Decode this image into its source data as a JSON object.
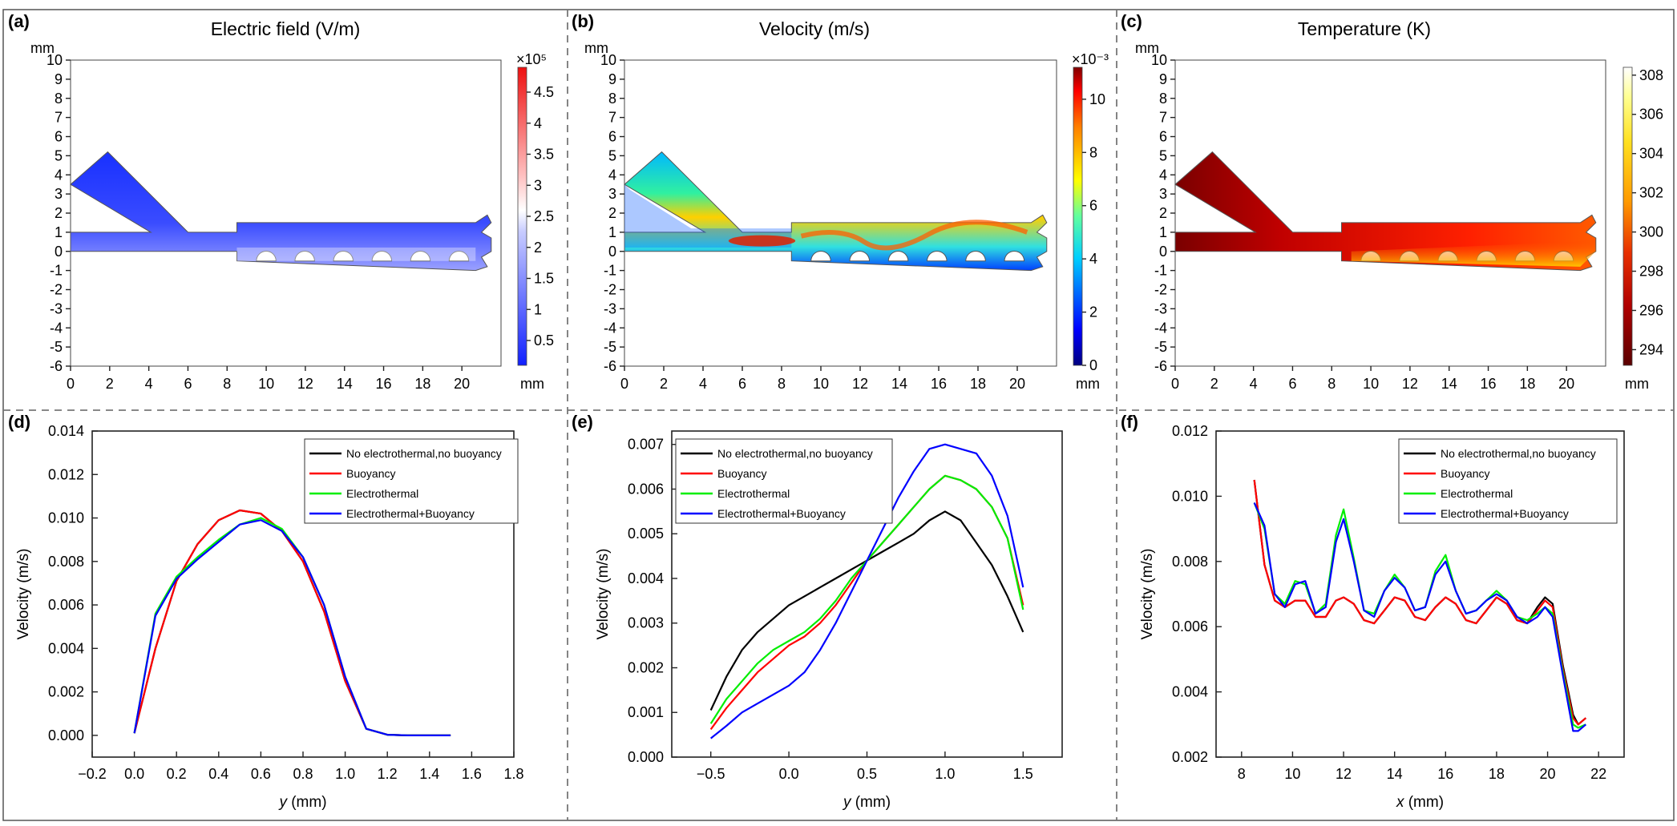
{
  "colors": {
    "no_et_no_b": "#000000",
    "buoyancy": "#ff0000",
    "electrothermal": "#00ee00",
    "et_buoyancy": "#0000ff",
    "channel_blue": "#0010ff"
  },
  "maps": [
    {
      "label": "(a)",
      "title": "Electric field (V/m)",
      "xticks": [
        "0",
        "2",
        "4",
        "6",
        "8",
        "10",
        "12",
        "14",
        "16",
        "18",
        "20"
      ],
      "yticks": [
        "10",
        "9",
        "8",
        "7",
        "6",
        "5",
        "4",
        "3",
        "2",
        "1",
        "0",
        "-1",
        "-2",
        "-3",
        "-4",
        "-5",
        "-6"
      ],
      "unit_x": "mm",
      "unit_y": "mm",
      "colorbar": {
        "exponent": "×10⁵",
        "ticks": [
          "4.5",
          "4",
          "3.5",
          "3",
          "2.5",
          "2",
          "1.5",
          "1",
          "0.5"
        ],
        "range": [
          0.1,
          4.9
        ],
        "values": [
          4.5,
          4,
          3.5,
          3,
          2.5,
          2,
          1.5,
          1,
          0.5
        ]
      }
    },
    {
      "label": "(b)",
      "title": "Velocity (m/s)",
      "xticks": [
        "0",
        "2",
        "4",
        "6",
        "8",
        "10",
        "12",
        "14",
        "16",
        "18",
        "20"
      ],
      "yticks": [
        "10",
        "9",
        "8",
        "7",
        "6",
        "5",
        "4",
        "3",
        "2",
        "1",
        "0",
        "-1",
        "-2",
        "-3",
        "-4",
        "-5",
        "-6"
      ],
      "unit_x": "mm",
      "unit_y": "mm",
      "colorbar": {
        "exponent": "×10⁻³",
        "ticks": [
          "10",
          "8",
          "6",
          "4",
          "2",
          "0"
        ],
        "range": [
          0,
          11.2
        ],
        "values": [
          10,
          8,
          6,
          4,
          2,
          0
        ]
      }
    },
    {
      "label": "(c)",
      "title": "Temperature (K)",
      "xticks": [
        "0",
        "2",
        "4",
        "6",
        "8",
        "10",
        "12",
        "14",
        "16",
        "18",
        "20"
      ],
      "yticks": [
        "10",
        "9",
        "8",
        "7",
        "6",
        "5",
        "4",
        "3",
        "2",
        "1",
        "0",
        "-1",
        "-2",
        "-3",
        "-4",
        "-5",
        "-6"
      ],
      "unit_x": "mm",
      "unit_y": "mm",
      "colorbar": {
        "exponent": "",
        "ticks": [
          "308",
          "306",
          "304",
          "302",
          "300",
          "298",
          "296",
          "294"
        ],
        "range": [
          293.2,
          308.4
        ],
        "values": [
          308,
          306,
          304,
          302,
          300,
          298,
          296,
          294
        ]
      }
    }
  ],
  "chart_data": [
    {
      "type": "line",
      "panel": "(d)",
      "xlabel_var": "y",
      "xlabel_unit": " (mm)",
      "ylabel": "Velocity (m/s)",
      "xlim": [
        -0.2,
        1.8
      ],
      "ylim": [
        -0.001,
        0.014
      ],
      "xticks": [
        -0.2,
        0,
        0.2,
        0.4,
        0.6,
        0.8,
        1.0,
        1.2,
        1.4,
        1.6,
        1.8
      ],
      "xtick_labels": [
        "−0.2",
        "0.0",
        "0.2",
        "0.4",
        "0.6",
        "0.8",
        "1.0",
        "1.2",
        "1.4",
        "1.6",
        "1.8"
      ],
      "yticks": [
        0,
        0.002,
        0.004,
        0.006,
        0.008,
        0.01,
        0.012,
        0.014
      ],
      "ytick_labels": [
        "0.000",
        "0.002",
        "0.004",
        "0.006",
        "0.008",
        "0.010",
        "0.012",
        "0.014"
      ],
      "legend_position": "top-right",
      "series": [
        {
          "name": "No electrothermal,no buoyancy",
          "color": "#000000",
          "x": [
            0,
            0.1,
            0.2,
            0.3,
            0.4,
            0.5,
            0.6,
            0.7,
            0.8,
            0.9,
            1.0,
            1.1,
            1.2,
            1.3,
            1.4,
            1.5
          ],
          "y": [
            0.0001,
            0.004,
            0.0071,
            0.0088,
            0.0099,
            0.01035,
            0.0102,
            0.0094,
            0.008,
            0.0057,
            0.0025,
            0.0003,
            3e-05,
            0,
            0,
            0
          ]
        },
        {
          "name": "Buoyancy",
          "color": "#ff0000",
          "x": [
            0,
            0.1,
            0.2,
            0.3,
            0.4,
            0.5,
            0.6,
            0.7,
            0.8,
            0.9,
            1.0,
            1.1,
            1.2,
            1.3,
            1.4,
            1.5
          ],
          "y": [
            0.0001,
            0.004,
            0.0071,
            0.0088,
            0.0099,
            0.01035,
            0.0102,
            0.0094,
            0.008,
            0.0057,
            0.0025,
            0.0003,
            3e-05,
            0,
            0,
            0
          ]
        },
        {
          "name": "Electrothermal",
          "color": "#00ee00",
          "x": [
            0,
            0.1,
            0.2,
            0.3,
            0.4,
            0.5,
            0.6,
            0.7,
            0.8,
            0.9,
            1.0,
            1.1,
            1.2,
            1.3,
            1.4,
            1.5
          ],
          "y": [
            0.0001,
            0.0056,
            0.0073,
            0.0082,
            0.009,
            0.0097,
            0.01,
            0.0095,
            0.0082,
            0.006,
            0.0027,
            0.0003,
            3e-05,
            0,
            0,
            0
          ]
        },
        {
          "name": "Electrothermal+Buoyancy",
          "color": "#0000ff",
          "x": [
            0,
            0.1,
            0.2,
            0.3,
            0.4,
            0.5,
            0.6,
            0.7,
            0.8,
            0.9,
            1.0,
            1.1,
            1.2,
            1.3,
            1.4,
            1.5
          ],
          "y": [
            0.0001,
            0.0055,
            0.0072,
            0.0081,
            0.0089,
            0.0097,
            0.0099,
            0.0094,
            0.0082,
            0.006,
            0.0027,
            0.0003,
            3e-05,
            0,
            0,
            0
          ]
        }
      ]
    },
    {
      "type": "line",
      "panel": "(e)",
      "xlabel_var": "y",
      "xlabel_unit": " (mm)",
      "ylabel": "Velocity (m/s)",
      "xlim": [
        -0.75,
        1.75
      ],
      "ylim": [
        0,
        0.0073
      ],
      "xticks": [
        -0.5,
        0,
        0.5,
        1.0,
        1.5
      ],
      "xtick_labels": [
        "−0.5",
        "0.0",
        "0.5",
        "1.0",
        "1.5"
      ],
      "yticks": [
        0,
        0.001,
        0.002,
        0.003,
        0.004,
        0.005,
        0.006,
        0.007
      ],
      "ytick_labels": [
        "0.000",
        "0.001",
        "0.002",
        "0.003",
        "0.004",
        "0.005",
        "0.006",
        "0.007"
      ],
      "legend_position": "top-left",
      "series": [
        {
          "name": "No electrothermal,no buoyancy",
          "color": "#000000",
          "x": [
            -0.5,
            -0.4,
            -0.3,
            -0.2,
            -0.1,
            0,
            0.1,
            0.2,
            0.3,
            0.4,
            0.5,
            0.6,
            0.7,
            0.8,
            0.9,
            1.0,
            1.1,
            1.2,
            1.3,
            1.4,
            1.5
          ],
          "y": [
            0.00105,
            0.0018,
            0.0024,
            0.0028,
            0.0031,
            0.0034,
            0.0036,
            0.0038,
            0.004,
            0.0042,
            0.0044,
            0.0046,
            0.0048,
            0.005,
            0.0053,
            0.0055,
            0.0053,
            0.0048,
            0.0043,
            0.0036,
            0.0028
          ]
        },
        {
          "name": "Buoyancy",
          "color": "#ff0000",
          "x": [
            -0.5,
            -0.4,
            -0.3,
            -0.2,
            -0.1,
            0,
            0.1,
            0.2,
            0.3,
            0.4,
            0.5,
            0.6,
            0.7,
            0.8,
            0.9,
            1.0,
            1.1,
            1.2,
            1.3,
            1.4,
            1.5
          ],
          "y": [
            0.00062,
            0.0011,
            0.0015,
            0.0019,
            0.0022,
            0.0025,
            0.0027,
            0.003,
            0.0034,
            0.0039,
            0.0044,
            0.0048,
            0.0052,
            0.0056,
            0.006,
            0.0063,
            0.0062,
            0.006,
            0.0056,
            0.0049,
            0.0034
          ]
        },
        {
          "name": "Electrothermal",
          "color": "#00ee00",
          "x": [
            -0.5,
            -0.4,
            -0.3,
            -0.2,
            -0.1,
            0,
            0.1,
            0.2,
            0.3,
            0.4,
            0.5,
            0.6,
            0.7,
            0.8,
            0.9,
            1.0,
            1.1,
            1.2,
            1.3,
            1.4,
            1.5
          ],
          "y": [
            0.00075,
            0.0013,
            0.0017,
            0.0021,
            0.0024,
            0.0026,
            0.0028,
            0.0031,
            0.0035,
            0.004,
            0.0044,
            0.0048,
            0.0052,
            0.0056,
            0.006,
            0.0063,
            0.0062,
            0.006,
            0.0056,
            0.0049,
            0.0033
          ]
        },
        {
          "name": "Electrothermal+Buoyancy",
          "color": "#0000ff",
          "x": [
            -0.5,
            -0.4,
            -0.3,
            -0.2,
            -0.1,
            0,
            0.1,
            0.2,
            0.3,
            0.4,
            0.5,
            0.6,
            0.7,
            0.8,
            0.9,
            1.0,
            1.1,
            1.2,
            1.3,
            1.4,
            1.5
          ],
          "y": [
            0.00042,
            0.0007,
            0.001,
            0.0012,
            0.0014,
            0.0016,
            0.0019,
            0.0024,
            0.003,
            0.0037,
            0.0044,
            0.0051,
            0.0058,
            0.0064,
            0.0069,
            0.007,
            0.0069,
            0.0068,
            0.0063,
            0.0054,
            0.0038
          ]
        }
      ]
    },
    {
      "type": "line",
      "panel": "(f)",
      "xlabel_var": "x",
      "xlabel_unit": " (mm)",
      "ylabel": "Velocity (m/s)",
      "xlim": [
        7,
        23
      ],
      "ylim": [
        0.002,
        0.012
      ],
      "xticks": [
        8,
        10,
        12,
        14,
        16,
        18,
        20,
        22
      ],
      "xtick_labels": [
        "8",
        "10",
        "12",
        "14",
        "16",
        "18",
        "20",
        "22"
      ],
      "yticks": [
        0.002,
        0.004,
        0.006,
        0.008,
        0.01,
        0.012
      ],
      "ytick_labels": [
        "0.002",
        "0.004",
        "0.006",
        "0.008",
        "0.010",
        "0.012"
      ],
      "legend_position": "top-right",
      "series": [
        {
          "name": "No electrothermal,no buoyancy",
          "color": "#000000",
          "x": [
            8.5,
            8.9,
            9.3,
            9.7,
            10.1,
            10.5,
            10.9,
            11.3,
            11.7,
            12.0,
            12.4,
            12.8,
            13.2,
            13.6,
            14.0,
            14.4,
            14.8,
            15.2,
            15.6,
            16.0,
            16.4,
            16.8,
            17.2,
            17.6,
            18.0,
            18.4,
            18.8,
            19.2,
            19.6,
            19.9,
            20.2,
            20.6,
            21.0,
            21.2,
            21.5
          ],
          "y": [
            0.0105,
            0.0079,
            0.0068,
            0.0066,
            0.0068,
            0.0068,
            0.0063,
            0.0063,
            0.0068,
            0.0069,
            0.0067,
            0.0062,
            0.0061,
            0.0065,
            0.0069,
            0.0068,
            0.0063,
            0.0062,
            0.0066,
            0.0069,
            0.0067,
            0.0062,
            0.0061,
            0.0065,
            0.0069,
            0.0067,
            0.0062,
            0.0061,
            0.0066,
            0.0069,
            0.0067,
            0.0048,
            0.0033,
            0.003,
            0.0032
          ]
        },
        {
          "name": "Buoyancy",
          "color": "#ff0000",
          "x": [
            8.5,
            8.9,
            9.3,
            9.7,
            10.1,
            10.5,
            10.9,
            11.3,
            11.7,
            12.0,
            12.4,
            12.8,
            13.2,
            13.6,
            14.0,
            14.4,
            14.8,
            15.2,
            15.6,
            16.0,
            16.4,
            16.8,
            17.2,
            17.6,
            18.0,
            18.4,
            18.8,
            19.2,
            19.6,
            19.9,
            20.2,
            20.6,
            21.0,
            21.2,
            21.5
          ],
          "y": [
            0.0105,
            0.0079,
            0.0068,
            0.0066,
            0.0068,
            0.0068,
            0.0063,
            0.0063,
            0.0068,
            0.0069,
            0.0067,
            0.0062,
            0.0061,
            0.0065,
            0.0069,
            0.0068,
            0.0063,
            0.0062,
            0.0066,
            0.0069,
            0.0067,
            0.0062,
            0.0061,
            0.0065,
            0.0069,
            0.0067,
            0.0062,
            0.0061,
            0.0065,
            0.0068,
            0.0066,
            0.0047,
            0.0032,
            0.003,
            0.0032
          ]
        },
        {
          "name": "Electrothermal",
          "color": "#00ee00",
          "x": [
            8.5,
            8.9,
            9.3,
            9.7,
            10.1,
            10.5,
            10.9,
            11.3,
            11.7,
            12.0,
            12.4,
            12.8,
            13.2,
            13.6,
            14.0,
            14.4,
            14.8,
            15.2,
            15.6,
            16.0,
            16.4,
            16.8,
            17.2,
            17.6,
            18.0,
            18.4,
            18.8,
            19.2,
            19.6,
            19.9,
            20.2,
            20.6,
            21.0,
            21.2,
            21.5
          ],
          "y": [
            0.0098,
            0.009,
            0.007,
            0.0067,
            0.0074,
            0.0073,
            0.0064,
            0.0067,
            0.0088,
            0.0096,
            0.0081,
            0.0065,
            0.0064,
            0.0071,
            0.0076,
            0.0072,
            0.0065,
            0.0066,
            0.0077,
            0.0082,
            0.0071,
            0.0064,
            0.0065,
            0.0068,
            0.0071,
            0.0068,
            0.0063,
            0.0062,
            0.0064,
            0.0066,
            0.0064,
            0.0046,
            0.003,
            0.0029,
            0.003
          ]
        },
        {
          "name": "Electrothermal+Buoyancy",
          "color": "#0000ff",
          "x": [
            8.5,
            8.9,
            9.3,
            9.7,
            10.1,
            10.5,
            10.9,
            11.3,
            11.7,
            12.0,
            12.4,
            12.8,
            13.2,
            13.6,
            14.0,
            14.4,
            14.8,
            15.2,
            15.6,
            16.0,
            16.4,
            16.8,
            17.2,
            17.6,
            18.0,
            18.4,
            18.8,
            19.2,
            19.6,
            19.9,
            20.2,
            20.6,
            21.0,
            21.2,
            21.5
          ],
          "y": [
            0.0098,
            0.0091,
            0.007,
            0.0066,
            0.0073,
            0.0074,
            0.0064,
            0.0066,
            0.0086,
            0.0093,
            0.008,
            0.0065,
            0.0063,
            0.0071,
            0.0075,
            0.0072,
            0.0065,
            0.0066,
            0.0076,
            0.008,
            0.0071,
            0.0064,
            0.0065,
            0.0068,
            0.007,
            0.0068,
            0.0063,
            0.0061,
            0.0063,
            0.0066,
            0.0063,
            0.0045,
            0.0028,
            0.0028,
            0.003
          ]
        }
      ]
    }
  ]
}
